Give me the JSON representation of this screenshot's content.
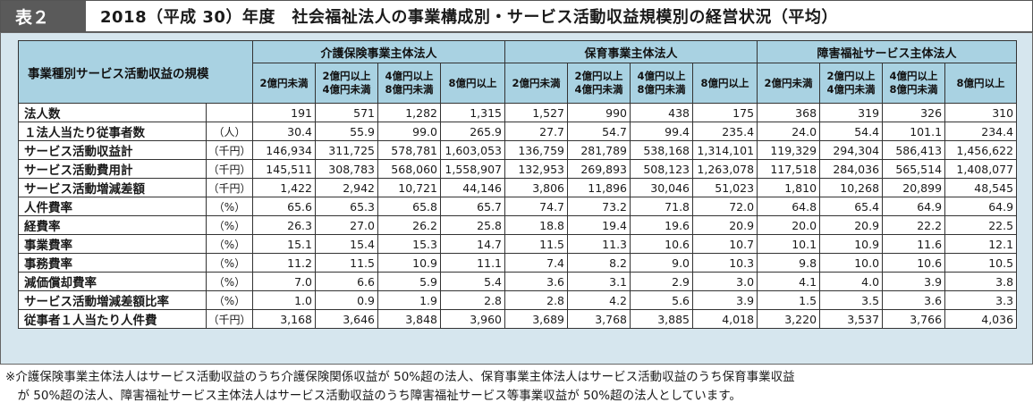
{
  "title": {
    "tag": "表２",
    "text": "2018（平成 30）年度　社会福祉法人の事業構成別・サービス活動収益規模別の経営状況（平均）"
  },
  "header": {
    "corner": "事業種別サービス活動収益の規模",
    "groups": [
      "介護保険事業主体法人",
      "保育事業主体法人",
      "障害福祉サービス主体法人"
    ],
    "sizes": [
      {
        "l1": "2億円未満",
        "l2": ""
      },
      {
        "l1": "2億円以上",
        "l2": "4億円未満"
      },
      {
        "l1": "4億円以上",
        "l2": "8億円未満"
      },
      {
        "l1": "8億円以上",
        "l2": ""
      }
    ]
  },
  "rows": [
    {
      "label": "法人数",
      "unit": "",
      "values": [
        "191",
        "571",
        "1,282",
        "1,315",
        "1,527",
        "990",
        "438",
        "175",
        "368",
        "319",
        "326",
        "310"
      ]
    },
    {
      "label": "１法人当たり従事者数",
      "unit": "（人）",
      "values": [
        "30.4",
        "55.9",
        "99.0",
        "265.9",
        "27.7",
        "54.7",
        "99.4",
        "235.4",
        "24.0",
        "54.4",
        "101.1",
        "234.4"
      ]
    },
    {
      "label": "サービス活動収益計",
      "unit": "（千円）",
      "values": [
        "146,934",
        "311,725",
        "578,781",
        "1,603,053",
        "136,759",
        "281,789",
        "538,168",
        "1,314,101",
        "119,329",
        "294,304",
        "586,413",
        "1,456,622"
      ]
    },
    {
      "label": "サービス活動費用計",
      "unit": "（千円）",
      "values": [
        "145,511",
        "308,783",
        "568,060",
        "1,558,907",
        "132,953",
        "269,893",
        "508,123",
        "1,263,078",
        "117,518",
        "284,036",
        "565,514",
        "1,408,077"
      ]
    },
    {
      "label": "サービス活動増減差額",
      "unit": "（千円）",
      "values": [
        "1,422",
        "2,942",
        "10,721",
        "44,146",
        "3,806",
        "11,896",
        "30,046",
        "51,023",
        "1,810",
        "10,268",
        "20,899",
        "48,545"
      ]
    },
    {
      "label": "人件費率",
      "unit": "（%）",
      "values": [
        "65.6",
        "65.3",
        "65.8",
        "65.7",
        "74.7",
        "73.2",
        "71.8",
        "72.0",
        "64.8",
        "65.4",
        "64.9",
        "64.9"
      ]
    },
    {
      "label": "経費率",
      "unit": "（%）",
      "values": [
        "26.3",
        "27.0",
        "26.2",
        "25.8",
        "18.8",
        "19.4",
        "19.6",
        "20.9",
        "20.0",
        "20.9",
        "22.2",
        "22.5"
      ]
    },
    {
      "label": "事業費率",
      "unit": "（%）",
      "values": [
        "15.1",
        "15.4",
        "15.3",
        "14.7",
        "11.5",
        "11.3",
        "10.6",
        "10.7",
        "10.1",
        "10.9",
        "11.6",
        "12.1"
      ]
    },
    {
      "label": "事務費率",
      "unit": "（%）",
      "values": [
        "11.2",
        "11.5",
        "10.9",
        "11.1",
        "7.4",
        "8.2",
        "9.0",
        "10.3",
        "9.8",
        "10.0",
        "10.6",
        "10.5"
      ]
    },
    {
      "label": "減価償却費率",
      "unit": "（%）",
      "values": [
        "7.0",
        "6.6",
        "5.9",
        "5.4",
        "3.6",
        "3.1",
        "2.9",
        "3.0",
        "4.1",
        "4.0",
        "3.9",
        "3.8"
      ]
    },
    {
      "label": "サービス活動増減差額比率",
      "unit": "（%）",
      "values": [
        "1.0",
        "0.9",
        "1.9",
        "2.8",
        "2.8",
        "4.2",
        "5.6",
        "3.9",
        "1.5",
        "3.5",
        "3.6",
        "3.3"
      ]
    },
    {
      "label": "従事者１人当たり人件費",
      "unit": "（千円）",
      "values": [
        "3,168",
        "3,646",
        "3,848",
        "3,960",
        "3,689",
        "3,768",
        "3,885",
        "4,018",
        "3,220",
        "3,537",
        "3,766",
        "4,036"
      ]
    }
  ],
  "footnote": {
    "line1": "※介護保険事業主体法人はサービス活動収益のうち介護保険関係収益が 50%超の法人、保育事業主体法人はサービス活動収益のうち保育事業収益",
    "line2": "　が 50%超の法人、障害福祉サービス主体法人はサービス活動収益のうち障害福祉サービス等事業収益が 50%超の法人としています。"
  }
}
